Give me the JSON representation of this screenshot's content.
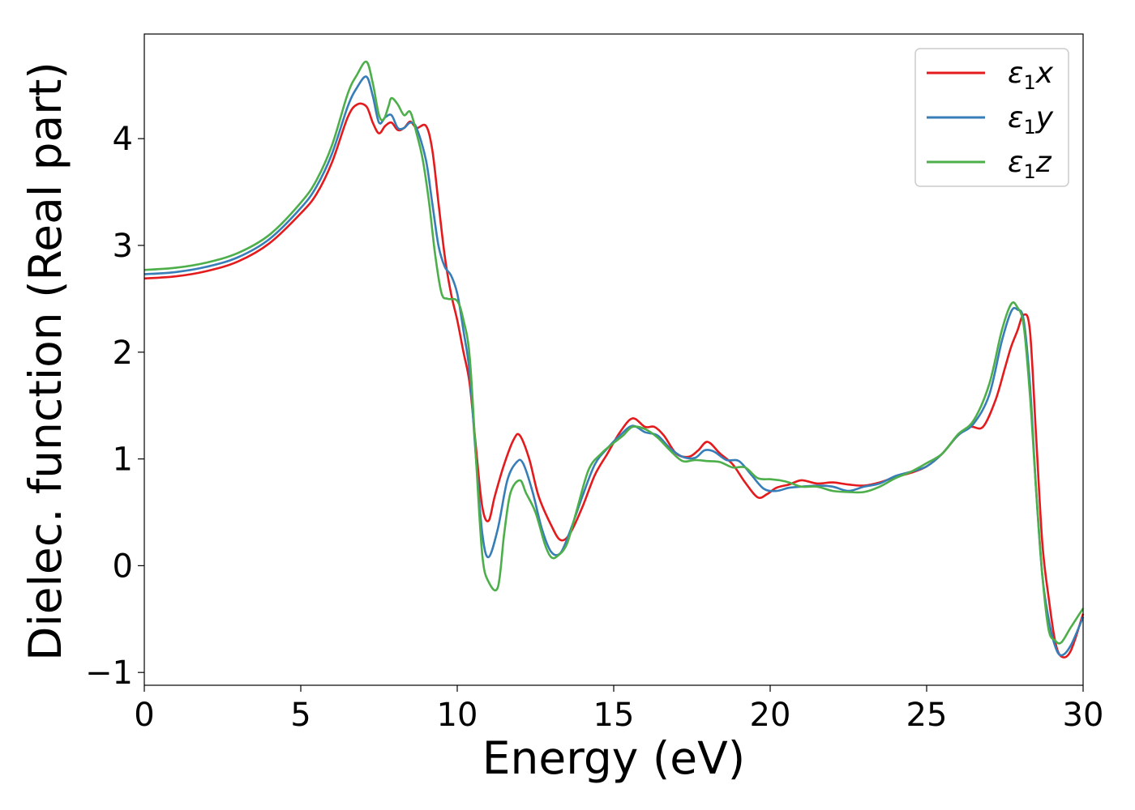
{
  "chart_data": {
    "type": "line",
    "xlabel": "Energy (eV)",
    "ylabel": "Dielec. function (Real part)",
    "xlim": [
      0,
      30
    ],
    "ylim": [
      -1.12,
      4.98
    ],
    "xticks": [
      0,
      5,
      10,
      15,
      20,
      25,
      30
    ],
    "yticks": [
      -1,
      0,
      1,
      2,
      3,
      4
    ],
    "xtick_labels": [
      "0",
      "5",
      "10",
      "15",
      "20",
      "25",
      "30"
    ],
    "ytick_labels": [
      "−1",
      "0",
      "1",
      "2",
      "3",
      "4"
    ],
    "grid": false,
    "legend_position": "top-right",
    "series": [
      {
        "name": "ε1x",
        "legend_main": "ε",
        "legend_sub": "1",
        "legend_var": "x",
        "color": "#e41a1c",
        "x": [
          0,
          1,
          2,
          3,
          4,
          5,
          5.5,
          6,
          6.5,
          6.8,
          7.1,
          7.3,
          7.5,
          7.7,
          7.9,
          8.1,
          8.3,
          8.5,
          8.7,
          9.0,
          9.2,
          9.4,
          9.6,
          9.8,
          10.0,
          10.2,
          10.4,
          10.6,
          10.8,
          11.0,
          11.2,
          11.5,
          11.8,
          12.0,
          12.3,
          12.6,
          13.0,
          13.3,
          13.6,
          14.0,
          14.4,
          14.8,
          15.2,
          15.6,
          16.0,
          16.3,
          16.6,
          17.0,
          17.4,
          17.7,
          18.0,
          18.4,
          18.8,
          19.2,
          19.6,
          19.9,
          20.2,
          20.6,
          21.0,
          21.5,
          22.0,
          22.5,
          23.0,
          23.5,
          24.0,
          24.5,
          25.0,
          25.5,
          26.0,
          26.4,
          26.8,
          27.2,
          27.5,
          27.7,
          27.9,
          28.1,
          28.3,
          28.5,
          28.7,
          28.9,
          29.1,
          29.3,
          29.6,
          30.0
        ],
        "y": [
          2.69,
          2.71,
          2.76,
          2.85,
          3.02,
          3.3,
          3.48,
          3.78,
          4.2,
          4.32,
          4.3,
          4.15,
          4.05,
          4.12,
          4.15,
          4.08,
          4.1,
          4.16,
          4.1,
          4.12,
          3.9,
          3.4,
          2.9,
          2.55,
          2.3,
          2.0,
          1.7,
          1.1,
          0.55,
          0.42,
          0.65,
          0.95,
          1.18,
          1.22,
          1.0,
          0.65,
          0.38,
          0.24,
          0.3,
          0.55,
          0.85,
          1.05,
          1.25,
          1.38,
          1.3,
          1.3,
          1.22,
          1.05,
          1.02,
          1.08,
          1.16,
          1.05,
          0.95,
          0.78,
          0.64,
          0.67,
          0.73,
          0.76,
          0.8,
          0.77,
          0.78,
          0.76,
          0.75,
          0.78,
          0.83,
          0.87,
          0.93,
          1.05,
          1.22,
          1.3,
          1.3,
          1.55,
          1.85,
          2.05,
          2.2,
          2.35,
          2.2,
          1.2,
          0.2,
          -0.3,
          -0.7,
          -0.85,
          -0.8,
          -0.45
        ]
      },
      {
        "name": "ε1y",
        "legend_main": "ε",
        "legend_sub": "1",
        "legend_var": "y",
        "color": "#377eb8",
        "x": [
          0,
          1,
          2,
          3,
          4,
          5,
          5.5,
          6,
          6.5,
          6.8,
          7.1,
          7.3,
          7.5,
          7.7,
          7.9,
          8.1,
          8.3,
          8.5,
          8.7,
          9.0,
          9.2,
          9.4,
          9.6,
          9.8,
          10.0,
          10.2,
          10.4,
          10.6,
          10.8,
          11.0,
          11.3,
          11.6,
          11.9,
          12.1,
          12.4,
          12.7,
          13.0,
          13.3,
          13.6,
          14.0,
          14.4,
          14.8,
          15.2,
          15.6,
          16.0,
          16.4,
          16.8,
          17.2,
          17.6,
          17.9,
          18.2,
          18.6,
          19.0,
          19.4,
          19.8,
          20.2,
          20.6,
          21.0,
          21.5,
          22.0,
          22.5,
          23.0,
          23.5,
          24.0,
          24.5,
          25.0,
          25.5,
          26.0,
          26.5,
          27.0,
          27.4,
          27.7,
          27.9,
          28.1,
          28.3,
          28.5,
          28.7,
          28.9,
          29.1,
          29.3,
          29.6,
          30.0
        ],
        "y": [
          2.73,
          2.75,
          2.8,
          2.89,
          3.06,
          3.35,
          3.55,
          3.86,
          4.3,
          4.48,
          4.58,
          4.4,
          4.15,
          4.2,
          4.22,
          4.1,
          4.1,
          4.15,
          4.1,
          3.8,
          3.4,
          3.0,
          2.8,
          2.72,
          2.55,
          2.2,
          1.8,
          1.0,
          0.3,
          0.08,
          0.35,
          0.8,
          0.97,
          0.96,
          0.7,
          0.35,
          0.13,
          0.12,
          0.32,
          0.65,
          0.95,
          1.1,
          1.22,
          1.31,
          1.25,
          1.22,
          1.1,
          1.02,
          1.01,
          1.08,
          1.07,
          0.99,
          0.98,
          0.85,
          0.72,
          0.7,
          0.73,
          0.74,
          0.75,
          0.74,
          0.7,
          0.74,
          0.77,
          0.84,
          0.88,
          0.93,
          1.05,
          1.22,
          1.33,
          1.6,
          2.1,
          2.38,
          2.4,
          2.3,
          1.7,
          0.7,
          -0.1,
          -0.5,
          -0.75,
          -0.84,
          -0.75,
          -0.48
        ]
      },
      {
        "name": "ε1z",
        "legend_main": "ε",
        "legend_sub": "1",
        "legend_var": "z",
        "color": "#4daf4a",
        "x": [
          0,
          1,
          2,
          3,
          4,
          5,
          5.5,
          6,
          6.5,
          6.8,
          7.1,
          7.3,
          7.5,
          7.65,
          7.8,
          7.9,
          8.1,
          8.3,
          8.5,
          8.7,
          8.9,
          9.1,
          9.3,
          9.5,
          9.7,
          10.0,
          10.2,
          10.4,
          10.6,
          10.8,
          11.0,
          11.3,
          11.5,
          11.7,
          12.0,
          12.2,
          12.5,
          12.8,
          13.0,
          13.2,
          13.5,
          13.8,
          14.2,
          14.6,
          15.0,
          15.3,
          15.6,
          16.0,
          16.4,
          16.8,
          17.2,
          17.6,
          18.0,
          18.4,
          18.8,
          19.2,
          19.6,
          20.0,
          20.3,
          20.6,
          21.0,
          21.5,
          22.0,
          22.5,
          23.0,
          23.5,
          24.0,
          24.5,
          25.0,
          25.5,
          26.0,
          26.5,
          27.0,
          27.4,
          27.7,
          27.9,
          28.1,
          28.3,
          28.5,
          28.7,
          28.9,
          29.1,
          29.3,
          29.6,
          30.0
        ],
        "y": [
          2.77,
          2.79,
          2.84,
          2.93,
          3.1,
          3.4,
          3.61,
          3.94,
          4.42,
          4.6,
          4.72,
          4.52,
          4.22,
          4.18,
          4.3,
          4.38,
          4.32,
          4.22,
          4.25,
          4.05,
          3.8,
          3.4,
          2.9,
          2.55,
          2.5,
          2.48,
          2.3,
          1.95,
          1.0,
          0.1,
          -0.15,
          -0.2,
          0.3,
          0.68,
          0.8,
          0.68,
          0.5,
          0.2,
          0.08,
          0.09,
          0.2,
          0.5,
          0.9,
          1.05,
          1.15,
          1.22,
          1.3,
          1.28,
          1.2,
          1.08,
          0.98,
          0.99,
          0.98,
          0.97,
          0.92,
          0.92,
          0.82,
          0.81,
          0.8,
          0.78,
          0.74,
          0.74,
          0.7,
          0.69,
          0.69,
          0.74,
          0.82,
          0.88,
          0.96,
          1.05,
          1.23,
          1.36,
          1.7,
          2.2,
          2.45,
          2.42,
          2.25,
          1.6,
          0.7,
          -0.1,
          -0.6,
          -0.7,
          -0.72,
          -0.58,
          -0.4
        ]
      }
    ]
  }
}
